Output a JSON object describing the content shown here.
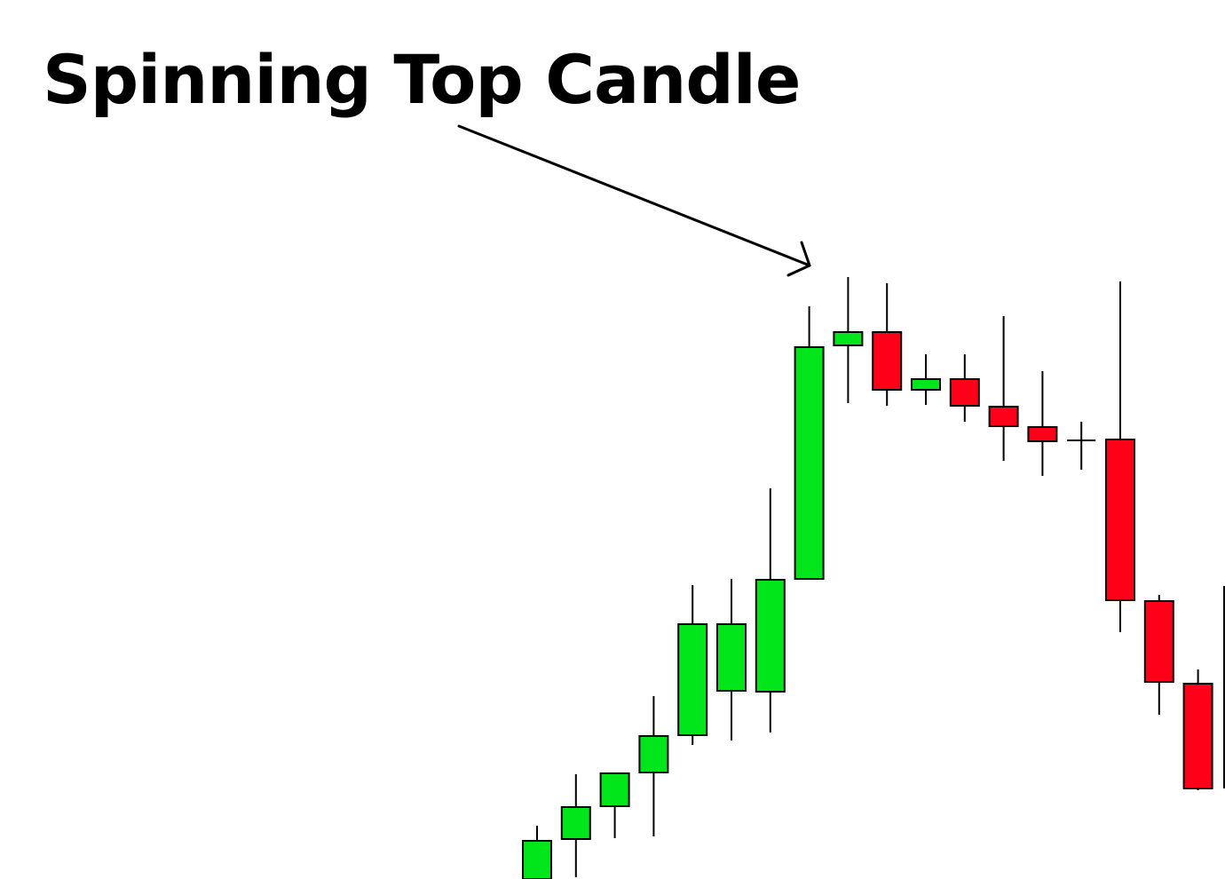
{
  "chart_data": {
    "type": "candlestick",
    "title": "Spinning Top Candle",
    "xlabel": "",
    "ylabel": "",
    "ylim": [
      0,
      680
    ],
    "grid": false,
    "colors": {
      "bullish": "#00e61a",
      "bearish": "#ff0019",
      "outline": "#000000"
    },
    "annotation": {
      "text": "Spinning Top Candle",
      "points_to_candle": 8
    },
    "candles": [
      {
        "open": 0,
        "high": 60,
        "low": -10,
        "close": 43
      },
      {
        "open": 45,
        "high": 118,
        "low": 2,
        "close": 81
      },
      {
        "open": 82,
        "high": 120,
        "low": 46,
        "close": 119
      },
      {
        "open": 120,
        "high": 206,
        "low": 48,
        "close": 161
      },
      {
        "open": 162,
        "high": 331,
        "low": 151,
        "close": 287
      },
      {
        "open": 212,
        "high": 338,
        "low": 156,
        "close": 287
      },
      {
        "open": 211,
        "high": 440,
        "low": 165,
        "close": 337
      },
      {
        "open": 338,
        "high": 645,
        "low": 338,
        "close": 599
      },
      {
        "open": 601,
        "high": 678,
        "low": 536,
        "close": 616
      },
      {
        "open": 616,
        "high": 671,
        "low": 533,
        "close": 551
      },
      {
        "open": 551,
        "high": 591,
        "low": 534,
        "close": 563
      },
      {
        "open": 563,
        "high": 591,
        "low": 515,
        "close": 533
      },
      {
        "open": 532,
        "high": 634,
        "low": 471,
        "close": 510
      },
      {
        "open": 509,
        "high": 572,
        "low": 454,
        "close": 493
      },
      {
        "open": 494,
        "high": 515,
        "low": 461,
        "close": 494
      },
      {
        "open": 495,
        "high": 673,
        "low": 278,
        "close": 314
      },
      {
        "open": 313,
        "high": 320,
        "low": 185,
        "close": 222
      },
      {
        "open": 220,
        "high": 236,
        "low": 100,
        "close": 102
      }
    ]
  }
}
